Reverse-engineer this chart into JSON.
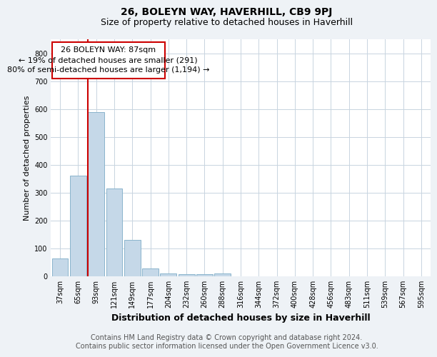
{
  "title": "26, BOLEYN WAY, HAVERHILL, CB9 9PJ",
  "subtitle": "Size of property relative to detached houses in Haverhill",
  "xlabel": "Distribution of detached houses by size in Haverhill",
  "ylabel": "Number of detached properties",
  "categories": [
    "37sqm",
    "65sqm",
    "93sqm",
    "121sqm",
    "149sqm",
    "177sqm",
    "204sqm",
    "232sqm",
    "260sqm",
    "288sqm",
    "316sqm",
    "344sqm",
    "372sqm",
    "400sqm",
    "428sqm",
    "456sqm",
    "483sqm",
    "511sqm",
    "539sqm",
    "567sqm",
    "595sqm"
  ],
  "values": [
    65,
    360,
    590,
    315,
    130,
    27,
    10,
    8,
    8,
    10,
    0,
    0,
    0,
    0,
    0,
    0,
    0,
    0,
    0,
    0,
    0
  ],
  "bar_color": "#c5d8e8",
  "bar_edge_color": "#8ab4cc",
  "red_line_index": 2,
  "annotation_lines": [
    "26 BOLEYN WAY: 87sqm",
    "← 19% of detached houses are smaller (291)",
    "80% of semi-detached houses are larger (1,194) →"
  ],
  "annotation_box_color": "#ffffff",
  "annotation_border_color": "#cc0000",
  "ylim": [
    0,
    850
  ],
  "yticks": [
    0,
    100,
    200,
    300,
    400,
    500,
    600,
    700,
    800
  ],
  "bg_color": "#eef2f6",
  "plot_bg_color": "#ffffff",
  "grid_color": "#c8d4e0",
  "footer_line1": "Contains HM Land Registry data © Crown copyright and database right 2024.",
  "footer_line2": "Contains public sector information licensed under the Open Government Licence v3.0.",
  "title_fontsize": 10,
  "subtitle_fontsize": 9,
  "xlabel_fontsize": 9,
  "ylabel_fontsize": 8,
  "tick_fontsize": 7,
  "annot_fontsize": 8,
  "footer_fontsize": 7
}
